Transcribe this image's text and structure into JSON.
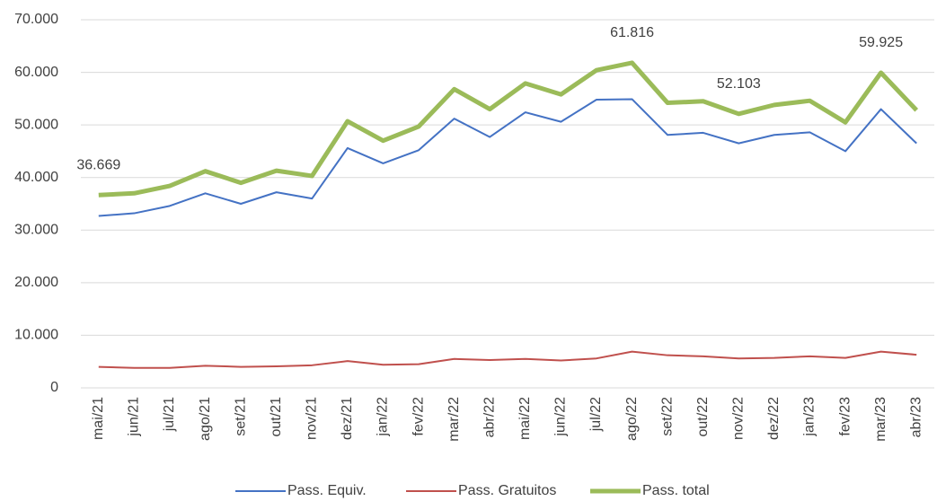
{
  "chart_data": {
    "type": "line",
    "categories": [
      "mai/21",
      "jun/21",
      "jul/21",
      "ago/21",
      "set/21",
      "out/21",
      "nov/21",
      "dez/21",
      "jan/22",
      "fev/22",
      "mar/22",
      "abr/22",
      "mai/22",
      "jun/22",
      "jul/22",
      "ago/22",
      "set/22",
      "out/22",
      "nov/22",
      "dez/22",
      "jan/23",
      "fev/23",
      "mar/23",
      "abr/23"
    ],
    "series": [
      {
        "name": "Pass. Equiv.",
        "color": "#4472c4",
        "width": 2,
        "values": [
          32700,
          33200,
          34600,
          37000,
          35000,
          37200,
          36000,
          45600,
          42700,
          45200,
          51200,
          47700,
          52400,
          50600,
          54800,
          54900,
          48100,
          48500,
          46500,
          48100,
          48600,
          45000,
          53000,
          46500
        ]
      },
      {
        "name": "Pass. Gratuitos",
        "color": "#c0504d",
        "width": 2,
        "values": [
          4000,
          3800,
          3800,
          4200,
          4000,
          4100,
          4300,
          5100,
          4400,
          4500,
          5500,
          5300,
          5500,
          5200,
          5600,
          6900,
          6200,
          6000,
          5600,
          5700,
          6000,
          5700,
          6900,
          6300
        ]
      },
      {
        "name": "Pass. total",
        "color": "#9bbb59",
        "width": 5,
        "values": [
          36669,
          37000,
          38400,
          41200,
          39000,
          41300,
          40300,
          50700,
          47000,
          49700,
          56800,
          53000,
          57900,
          55800,
          60400,
          61816,
          54200,
          54500,
          52103,
          53800,
          54600,
          50500,
          59925,
          52800
        ],
        "value_labels": [
          "36.669",
          null,
          null,
          null,
          null,
          null,
          null,
          null,
          null,
          null,
          null,
          null,
          null,
          null,
          null,
          "61.816",
          null,
          null,
          "52.103",
          null,
          null,
          null,
          "59.925",
          null
        ]
      }
    ],
    "ylim": [
      0,
      70000
    ],
    "yticks": [
      0,
      {
        "value": 10000,
        "label": "10.000"
      },
      {
        "value": 20000,
        "label": "20.000"
      },
      {
        "value": 30000,
        "label": "30.000"
      },
      {
        "value": 40000,
        "label": "40.000"
      },
      {
        "value": 50000,
        "label": "50.000"
      },
      {
        "value": 60000,
        "label": "60.000"
      },
      {
        "value": 70000,
        "label": "70.000"
      }
    ],
    "grid": true,
    "legend": "bottom"
  }
}
